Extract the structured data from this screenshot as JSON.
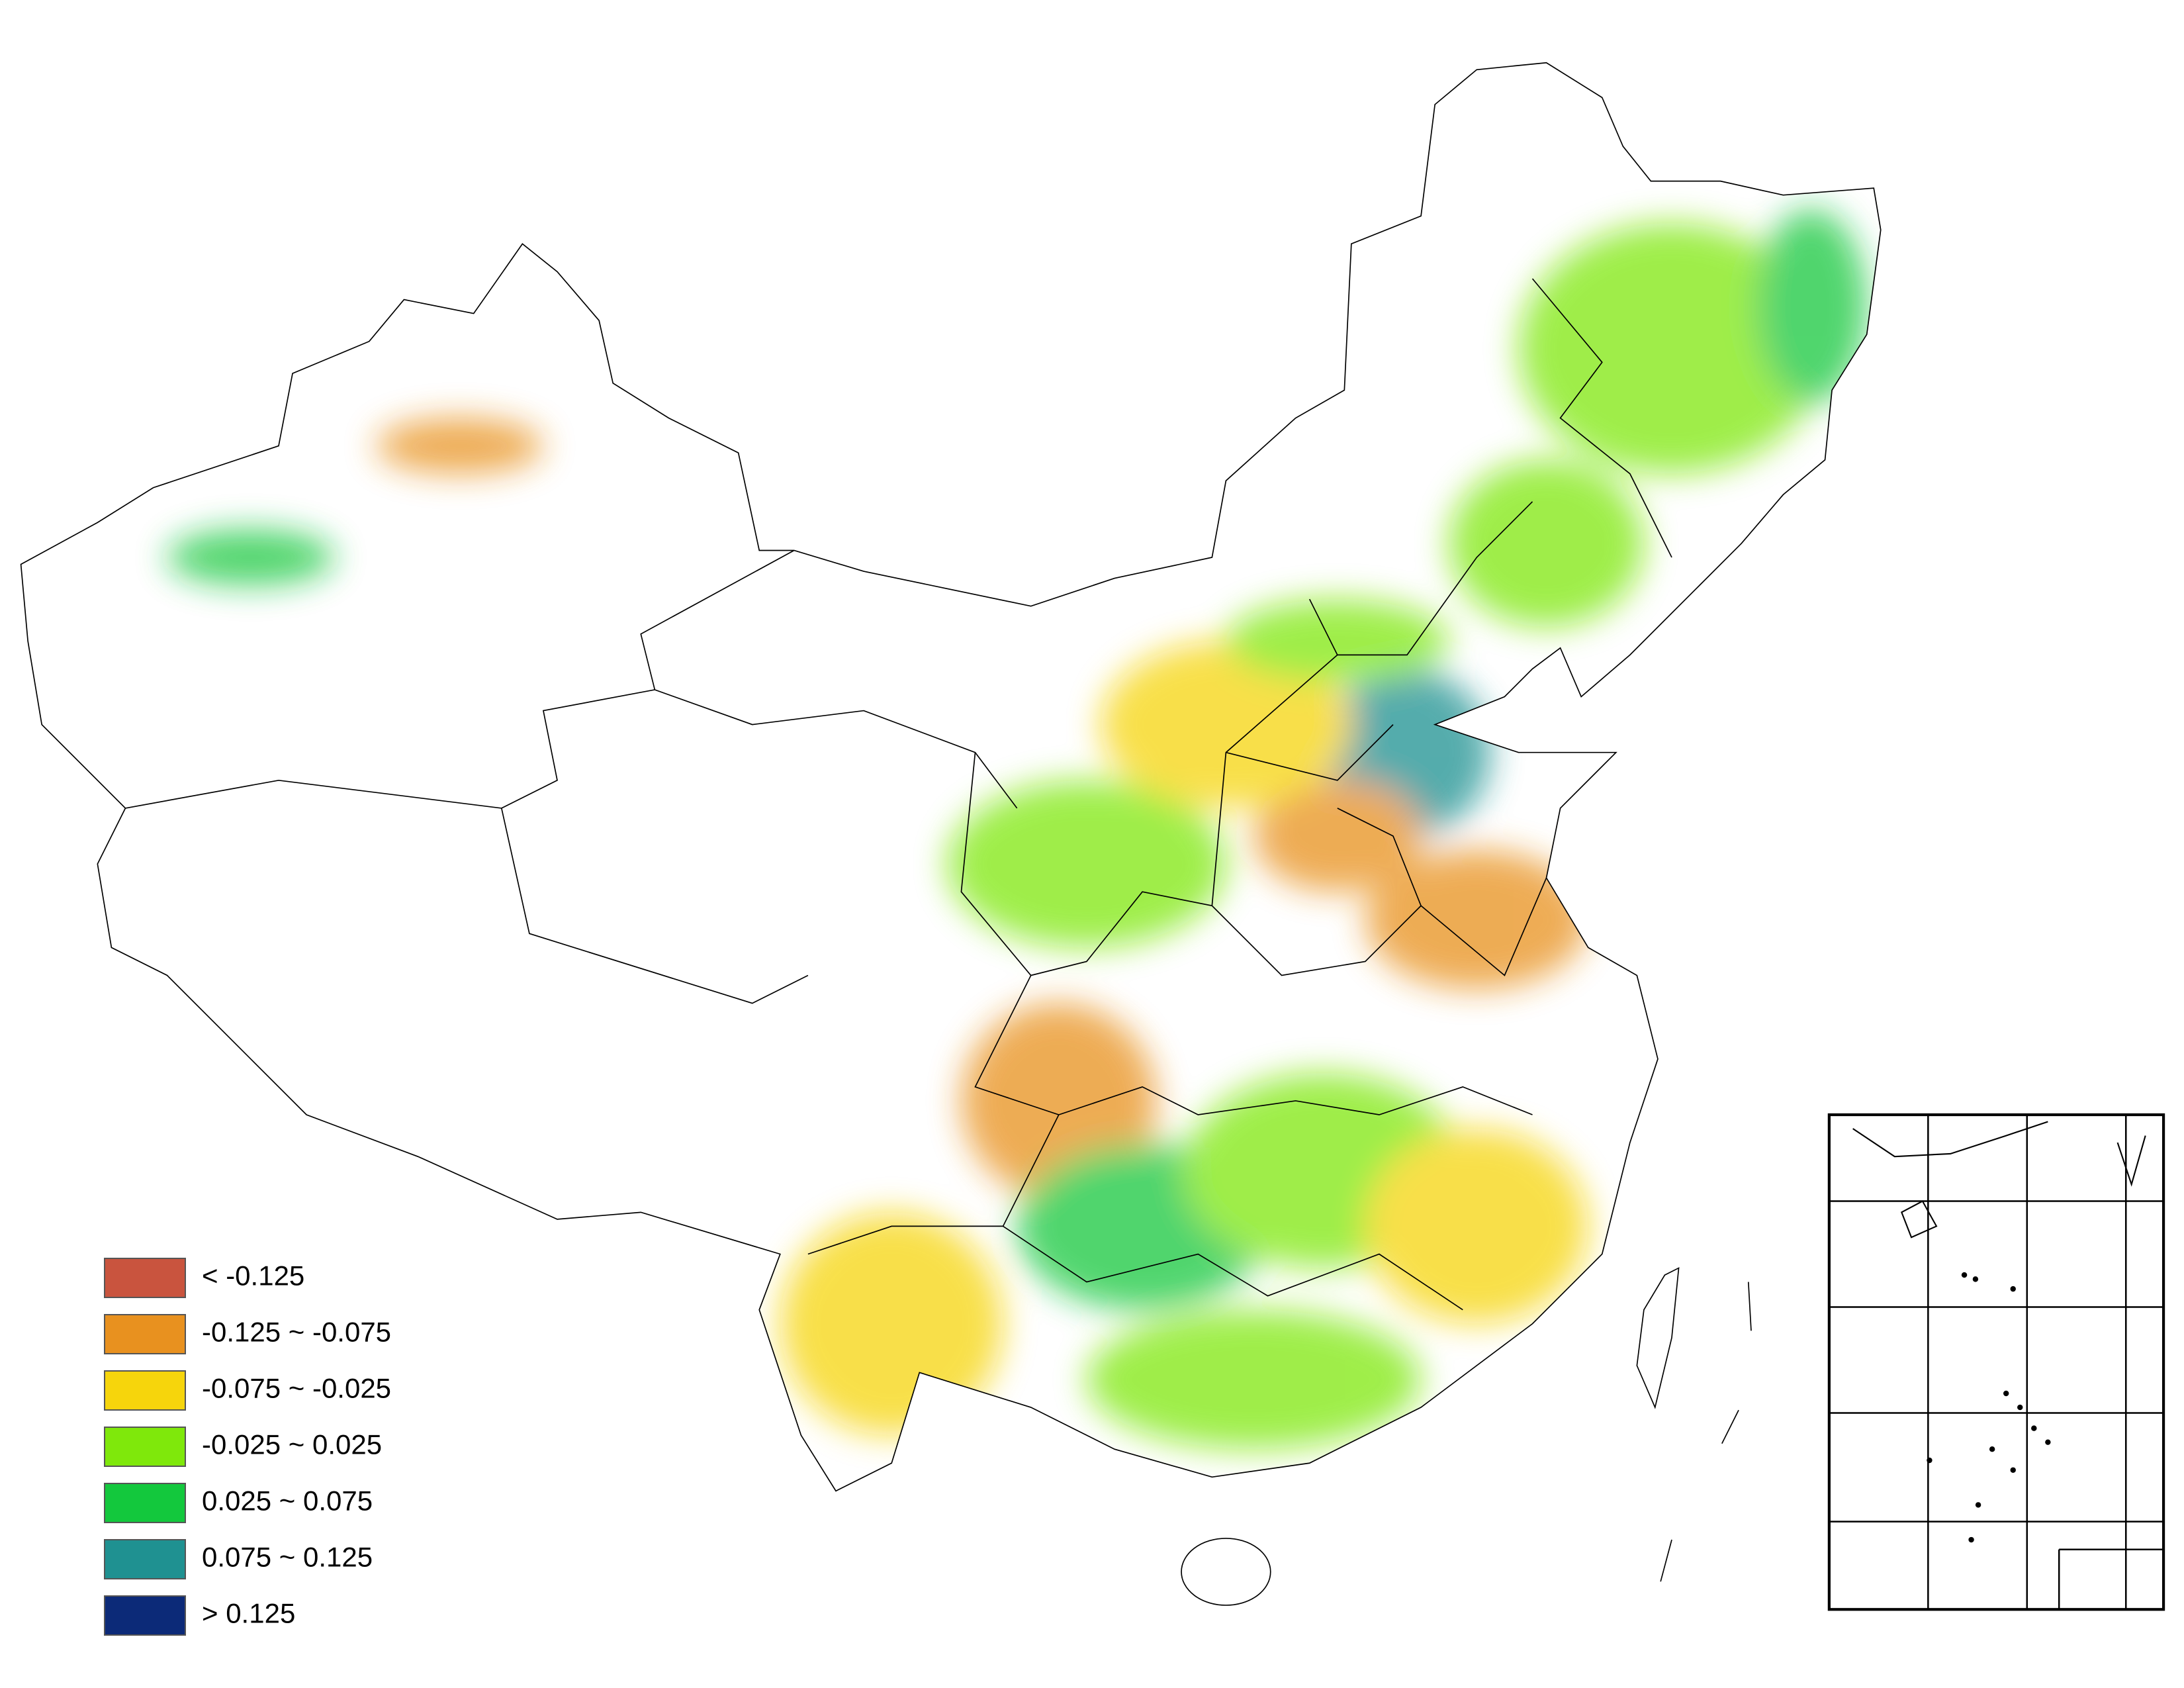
{
  "legend": {
    "items": [
      {
        "label": "< -0.125",
        "color": "#c9543e"
      },
      {
        "label": "-0.125 ~ -0.075",
        "color": "#e8911f"
      },
      {
        "label": "-0.075 ~ -0.025",
        "color": "#f6d50c"
      },
      {
        "label": "-0.025 ~ 0.025",
        "color": "#7fe80b"
      },
      {
        "label": "0.025 ~ 0.075",
        "color": "#13c83d"
      },
      {
        "label": "0.075 ~ 0.125",
        "color": "#1f9191"
      },
      {
        "label": "> 0.125",
        "color": "#0c2a78"
      }
    ]
  }
}
